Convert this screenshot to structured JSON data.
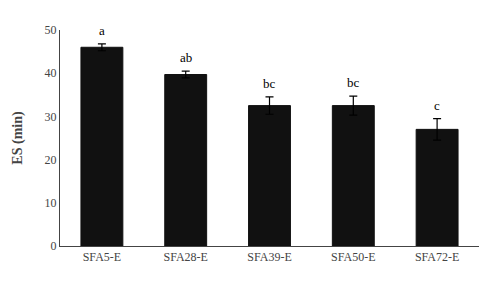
{
  "chart_data": {
    "type": "bar",
    "ylabel": "ES (min)",
    "categories": [
      "SFA5-E",
      "SFA28-E",
      "SFA39-E",
      "SFA50-E",
      "SFA72-E"
    ],
    "values": [
      46.0,
      39.7,
      32.5,
      32.5,
      27.0
    ],
    "errors": [
      0.8,
      0.8,
      2.0,
      2.2,
      2.5
    ],
    "annotations": [
      "a",
      "ab",
      "bc",
      "bc",
      "c"
    ],
    "color": "#111111",
    "ylim": [
      0,
      50
    ],
    "yticks": [
      0,
      10,
      20,
      30,
      40,
      50
    ],
    "grid": false
  }
}
